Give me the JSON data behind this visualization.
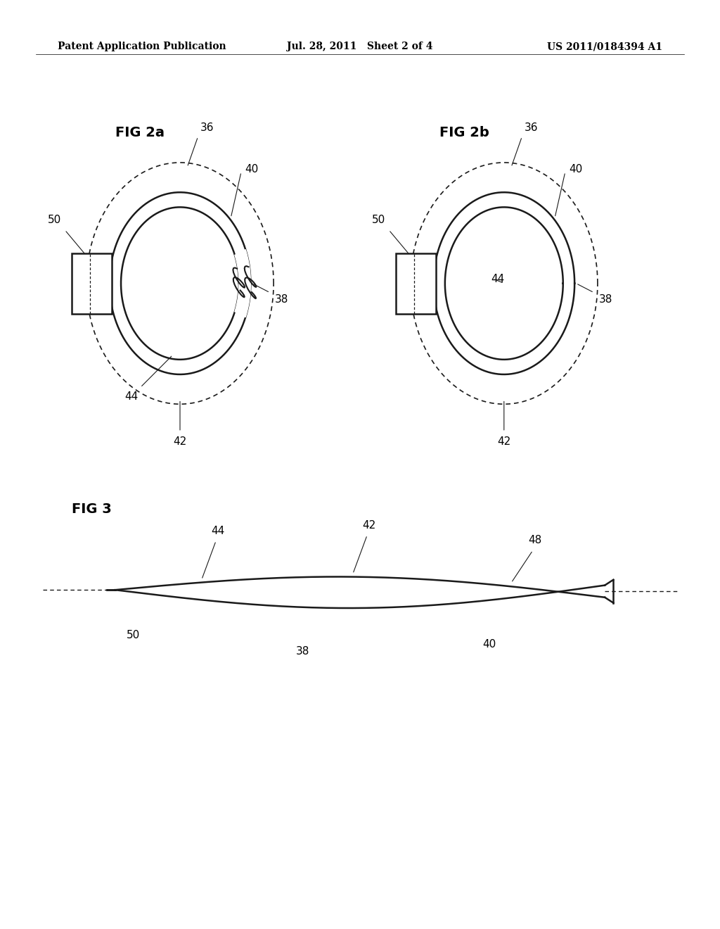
{
  "background_color": "#ffffff",
  "header_left": "Patent Application Publication",
  "header_center": "Jul. 28, 2011   Sheet 2 of 4",
  "header_right": "US 2011/0184394 A1",
  "header_fontsize": 10,
  "fig2a_label": "FIG 2a",
  "fig2b_label": "FIG 2b",
  "fig3_label": "FIG 3",
  "line_color": "#1a1a1a",
  "dashed_color": "#1a1a1a",
  "label_fontsize": 11,
  "fig_label_fontsize": 14
}
